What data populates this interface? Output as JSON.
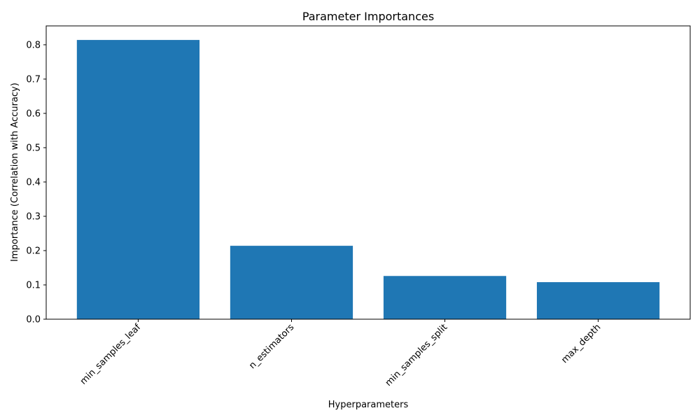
{
  "chart_data": {
    "type": "bar",
    "title": "Parameter Importances",
    "xlabel": "Hyperparameters",
    "ylabel": "Importance (Correlation with Accuracy)",
    "categories": [
      "min_samples_leaf",
      "n_estimators",
      "min_samples_split",
      "max_depth"
    ],
    "values": [
      0.814,
      0.214,
      0.126,
      0.108
    ],
    "ylim": [
      0,
      0.855
    ],
    "yticks": [
      "0.0",
      "0.1",
      "0.2",
      "0.3",
      "0.4",
      "0.5",
      "0.6",
      "0.7",
      "0.8"
    ],
    "xtick_rotation_deg": 45,
    "grid": false,
    "bar_color": "#1f77b4"
  }
}
